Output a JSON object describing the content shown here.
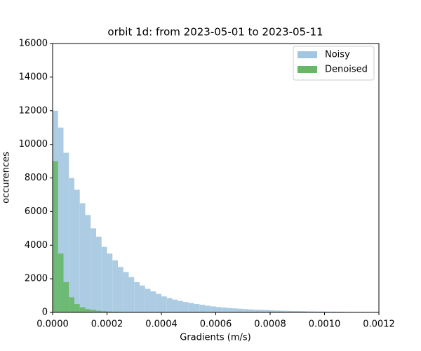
{
  "chart_data": {
    "type": "histogram",
    "title": "orbit 1d: from 2023-05-01 to 2023-05-11",
    "xlabel": "Gradients (m/s)",
    "ylabel": "occurences",
    "bins": [
      0,
      2e-05,
      4e-05,
      6e-05,
      8e-05,
      0.0001,
      0.00012,
      0.00014,
      0.00016,
      0.00018,
      0.0002,
      0.00022,
      0.00024,
      0.00026,
      0.00028,
      0.0003,
      0.00032,
      0.00034,
      0.00036,
      0.00038,
      0.0004,
      0.00042,
      0.00044,
      0.00046,
      0.00048,
      0.0005,
      0.00052,
      0.00054,
      0.00056,
      0.00058,
      0.0006,
      0.00062,
      0.00064,
      0.00066,
      0.00068,
      0.0007,
      0.00072,
      0.00074,
      0.00076,
      0.00078,
      0.0008,
      0.00082,
      0.00084,
      0.00086,
      0.00088,
      0.0009,
      0.00092,
      0.00094,
      0.00096,
      0.00098,
      0.001,
      0.00102,
      0.00104,
      0.00106,
      0.00108
    ],
    "series": [
      {
        "name": "Noisy",
        "color": "#a3c6e0",
        "values": [
          12000,
          11000,
          9500,
          8000,
          7300,
          6500,
          5800,
          5000,
          4500,
          3900,
          3500,
          3100,
          2700,
          2400,
          2100,
          1800,
          1600,
          1400,
          1250,
          1100,
          950,
          850,
          760,
          680,
          620,
          560,
          500,
          450,
          400,
          360,
          320,
          290,
          260,
          240,
          220,
          200,
          180,
          160,
          150,
          140,
          120,
          110,
          100,
          90,
          85,
          80,
          70,
          60,
          55,
          50,
          45,
          40,
          35,
          30
        ]
      },
      {
        "name": "Denoised",
        "color": "#67b767",
        "values": [
          9000,
          3500,
          1800,
          900,
          500,
          300,
          200,
          150,
          100,
          70,
          50,
          40,
          30,
          20,
          15,
          10,
          8,
          5,
          0,
          0,
          0,
          0,
          0,
          0,
          0,
          0,
          0,
          0,
          0,
          0,
          0,
          0,
          0,
          0,
          0,
          0,
          0,
          0,
          0,
          0,
          0,
          0,
          0,
          0,
          0,
          0,
          0,
          0,
          0,
          0,
          0,
          0,
          0,
          0
        ]
      }
    ],
    "xlim": [
      0,
      0.0012
    ],
    "xticks": [
      {
        "value": 0,
        "label": "0.0000"
      },
      {
        "value": 0.0002,
        "label": "0.0002"
      },
      {
        "value": 0.0004,
        "label": "0.0004"
      },
      {
        "value": 0.0006,
        "label": "0.0006"
      },
      {
        "value": 0.0008,
        "label": "0.0008"
      },
      {
        "value": 0.001,
        "label": "0.0010"
      },
      {
        "value": 0.0012,
        "label": "0.0012"
      }
    ],
    "ylim": [
      0,
      16000
    ],
    "yticks": [
      0,
      2000,
      4000,
      6000,
      8000,
      10000,
      12000,
      14000,
      16000
    ],
    "legend": "upper right"
  }
}
